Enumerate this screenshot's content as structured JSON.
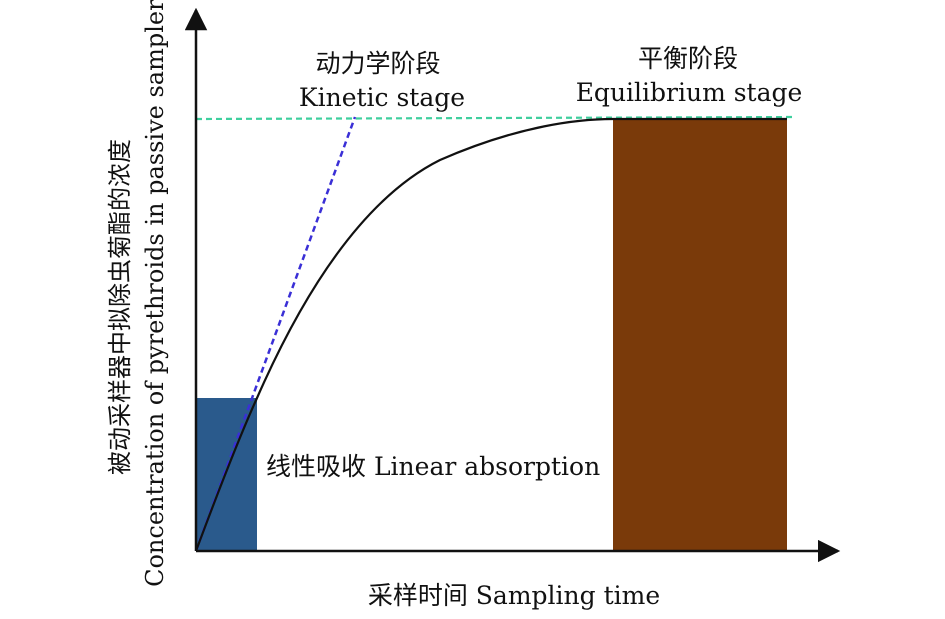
{
  "diagram": {
    "y_axis_label_zh": "被动采样器中拟除虫菊酯的浓度",
    "y_axis_label_en": "Concentration of pyrethroids in passive samplers",
    "x_axis_label": "采样时间 Sampling time",
    "stages": {
      "kinetic_zh": "动力学阶段",
      "kinetic_en": "Kinetic stage",
      "equilibrium_zh": "平衡阶段",
      "equilibrium_en": "Equilibrium stage",
      "linear": "线性吸收 Linear absorption"
    },
    "colors": {
      "linear_block": "#2a5a8c",
      "equilibrium_block": "#7a3a0a",
      "uptake_curve": "#111111",
      "kinetic_tangent": "#3a2fd6",
      "equilibrium_line": "#3fcf9e",
      "axes": "#111111"
    }
  }
}
